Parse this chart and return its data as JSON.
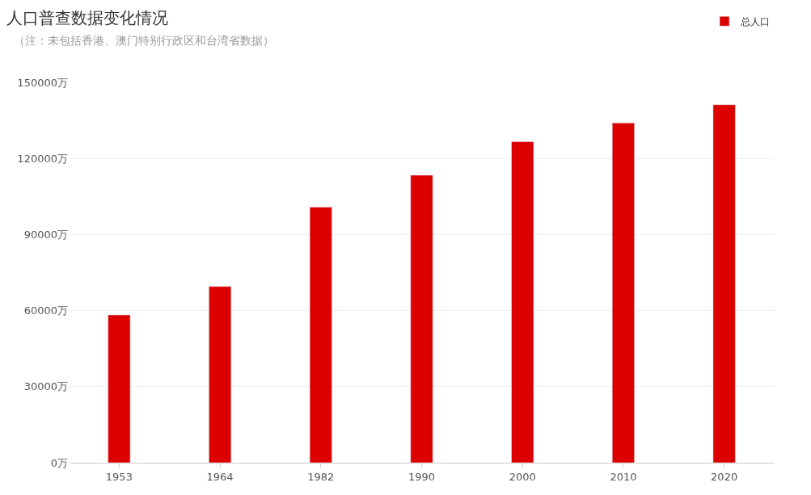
{
  "chart_data": {
    "type": "bar",
    "title": "人口普查数据变化情况",
    "subtitle": "（注：未包括香港、澳门特别行政区和台湾省数据）",
    "categories": [
      "1953",
      "1964",
      "1982",
      "1990",
      "2000",
      "2010",
      "2020"
    ],
    "series": [
      {
        "name": "总人口",
        "color": "#dd0000",
        "values": [
          58300,
          69500,
          100800,
          113400,
          126600,
          134000,
          141200
        ]
      }
    ],
    "ylim": [
      0,
      150000
    ],
    "yticks": [
      {
        "value": 0,
        "label": "0万"
      },
      {
        "value": 30000,
        "label": "30000万"
      },
      {
        "value": 60000,
        "label": "60000万"
      },
      {
        "value": 90000,
        "label": "90000万"
      },
      {
        "value": 120000,
        "label": "120000万"
      },
      {
        "value": 150000,
        "label": "150000万"
      }
    ],
    "grid": "y",
    "legend": "top right"
  }
}
